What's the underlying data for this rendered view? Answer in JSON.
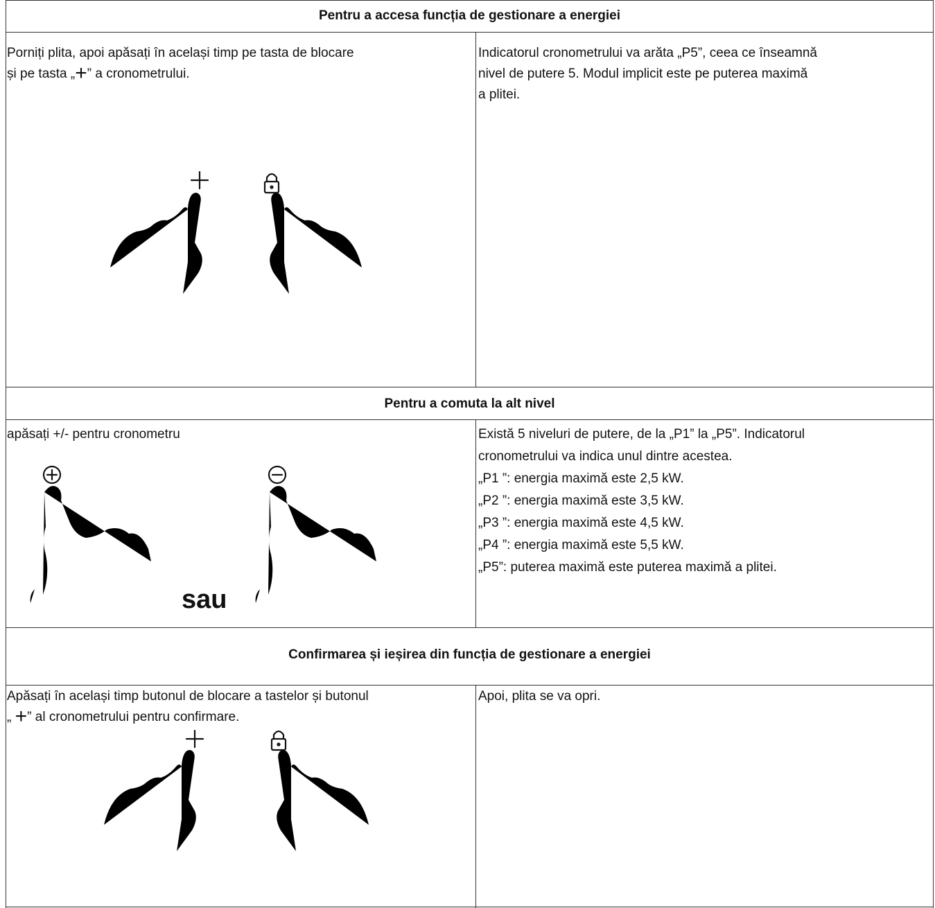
{
  "sections": [
    {
      "heading": "Pentru a accesa funcția de gestionare a energiei",
      "left": {
        "lines": [
          [
            "Porniți plita, apoi apăsați în același timp pe tasta de blocare"
          ],
          [
            "și pe tasta „",
            "+",
            "” a cronometrului."
          ]
        ]
      },
      "right": {
        "lines": [
          "Indicatorul cronometrului va arăta „P5”, ceea ce înseamnă",
          "nivel de putere 5. Modul implicit este pe puterea maximă",
          "a plitei."
        ]
      }
    },
    {
      "heading": "Pentru a comuta la alt nivel",
      "left": {
        "lines": [
          [
            "apăsați +/- pentru cronometru"
          ]
        ],
        "separator": "sau"
      },
      "right": {
        "lines": [
          "Există 5 niveluri de putere, de la „P1” la „P5”. Indicatorul",
          "cronometrului va indica unul dintre acestea.",
          "„P1 ”: energia maximă este 2,5 kW.",
          "„P2 ”: energia maximă este 3,5 kW.",
          "„P3 ”: energia maximă este 4,5 kW.",
          "„P4 ”: energia maximă este 5,5 kW.",
          "„P5”: puterea maximă este puterea maximă a plitei."
        ]
      }
    },
    {
      "heading": "Confirmarea și ieșirea din funcția de gestionare a energiei",
      "left": {
        "lines": [
          [
            "Apăsați în același timp butonul de blocare a tastelor și butonul"
          ],
          [
            "„ ",
            "+",
            "” al cronometrului pentru confirmare."
          ]
        ]
      },
      "right": {
        "lines": [
          "Apoi, plita se va opri."
        ]
      }
    }
  ]
}
